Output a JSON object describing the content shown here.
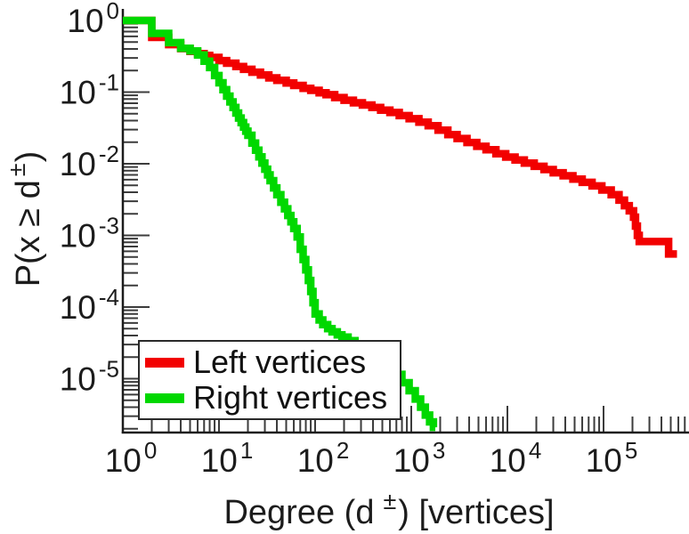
{
  "figure_title": "",
  "chart_data": {
    "type": "line",
    "subtype": "ccdf-step-loglog",
    "x_scale": "log",
    "y_scale": "log",
    "xlim": [
      1,
      800000
    ],
    "ylim": [
      1.8e-06,
      1
    ],
    "grid": false,
    "background_color": "#ffffff",
    "axis_color": "#1c1c1c",
    "tick_color": "#3c3c3c",
    "xlabel": {
      "pre": "Degree (d",
      "sup": "±",
      "post": ") [vertices]",
      "text": "Degree (d±) [vertices]"
    },
    "ylabel": {
      "pre": "P(x ≥ d",
      "sup": "±",
      "post": ")",
      "text": "P(x ≥ d±)"
    },
    "x_axis": {
      "ticks": [
        {
          "base": "10",
          "exp": "0"
        },
        {
          "base": "10",
          "exp": "1"
        },
        {
          "base": "10",
          "exp": "2"
        },
        {
          "base": "10",
          "exp": "3"
        },
        {
          "base": "10",
          "exp": "4"
        },
        {
          "base": "10",
          "exp": "5"
        }
      ]
    },
    "y_axis": {
      "ticks": [
        {
          "base": "10",
          "exp": "0"
        },
        {
          "base": "10",
          "exp": "-1"
        },
        {
          "base": "10",
          "exp": "-2"
        },
        {
          "base": "10",
          "exp": "-3"
        },
        {
          "base": "10",
          "exp": "-4"
        },
        {
          "base": "10",
          "exp": "-5"
        }
      ]
    },
    "legend_position": "lower-left",
    "series": [
      {
        "name": "Left vertices",
        "color": "#f20000",
        "x_end": 580000,
        "points": [
          [
            1,
            1.0
          ],
          [
            2,
            0.58
          ],
          [
            3,
            0.46
          ],
          [
            4,
            0.405
          ],
          [
            5,
            0.37
          ],
          [
            6,
            0.345
          ],
          [
            7,
            0.325
          ],
          [
            8,
            0.305
          ],
          [
            10,
            0.275
          ],
          [
            12,
            0.253
          ],
          [
            15,
            0.228
          ],
          [
            18,
            0.208
          ],
          [
            22,
            0.19
          ],
          [
            27,
            0.173
          ],
          [
            33,
            0.158
          ],
          [
            40,
            0.146
          ],
          [
            50,
            0.134
          ],
          [
            60,
            0.124
          ],
          [
            75,
            0.113
          ],
          [
            90,
            0.106
          ],
          [
            110,
            0.098
          ],
          [
            130,
            0.092
          ],
          [
            160,
            0.084
          ],
          [
            200,
            0.077
          ],
          [
            250,
            0.071
          ],
          [
            310,
            0.066
          ],
          [
            390,
            0.061
          ],
          [
            480,
            0.056
          ],
          [
            600,
            0.052
          ],
          [
            750,
            0.047
          ],
          [
            950,
            0.0425
          ],
          [
            1200,
            0.038
          ],
          [
            1500,
            0.034
          ],
          [
            1900,
            0.0295
          ],
          [
            2400,
            0.0255
          ],
          [
            3000,
            0.0225
          ],
          [
            3800,
            0.0198
          ],
          [
            4800,
            0.0175
          ],
          [
            6000,
            0.0157
          ],
          [
            7600,
            0.0138
          ],
          [
            9600,
            0.0124
          ],
          [
            12000,
            0.0113
          ],
          [
            15000,
            0.0102
          ],
          [
            19000,
            0.0092
          ],
          [
            24000,
            0.0083
          ],
          [
            30000,
            0.0075
          ],
          [
            38000,
            0.0068
          ],
          [
            48000,
            0.0061
          ],
          [
            60000,
            0.0055
          ],
          [
            76000,
            0.0049
          ],
          [
            96000,
            0.0043
          ],
          [
            120000,
            0.0037
          ],
          [
            145000,
            0.0031
          ],
          [
            165000,
            0.0026
          ],
          [
            185000,
            0.0022
          ],
          [
            205000,
            0.0018
          ],
          [
            215000,
            0.00135
          ],
          [
            225000,
            0.001
          ],
          [
            235000,
            0.00082
          ],
          [
            475000,
            0.00055
          ]
        ]
      },
      {
        "name": "Right vertices",
        "color": "#00d800",
        "x_end": 1780,
        "points": [
          [
            1,
            1.0
          ],
          [
            2,
            0.66
          ],
          [
            3,
            0.49
          ],
          [
            4,
            0.41
          ],
          [
            5,
            0.375
          ],
          [
            6,
            0.33
          ],
          [
            7,
            0.27
          ],
          [
            8,
            0.22
          ],
          [
            9,
            0.17
          ],
          [
            10,
            0.135
          ],
          [
            11,
            0.108
          ],
          [
            12,
            0.088
          ],
          [
            13,
            0.073
          ],
          [
            14,
            0.061
          ],
          [
            15,
            0.051
          ],
          [
            16,
            0.0435
          ],
          [
            17,
            0.0375
          ],
          [
            18,
            0.0325
          ],
          [
            19,
            0.0285
          ],
          [
            20,
            0.025
          ],
          [
            22,
            0.0195
          ],
          [
            24,
            0.0155
          ],
          [
            26,
            0.0125
          ],
          [
            28,
            0.0102
          ],
          [
            30,
            0.0084
          ],
          [
            32,
            0.007
          ],
          [
            34,
            0.0058
          ],
          [
            37,
            0.0046
          ],
          [
            40,
            0.0037
          ],
          [
            44,
            0.0029
          ],
          [
            48,
            0.00235
          ],
          [
            52,
            0.0019
          ],
          [
            56,
            0.00155
          ],
          [
            60,
            0.00125
          ],
          [
            65,
            0.00095
          ],
          [
            70,
            0.00064
          ],
          [
            75,
            0.00046
          ],
          [
            80,
            0.00033
          ],
          [
            85,
            0.000235
          ],
          [
            90,
            0.000165
          ],
          [
            95,
            0.000115
          ],
          [
            100,
            8e-05
          ],
          [
            110,
            6.6e-05
          ],
          [
            120,
            5.7e-05
          ],
          [
            135,
            5e-05
          ],
          [
            150,
            4.5e-05
          ],
          [
            170,
            4.1e-05
          ],
          [
            190,
            3.8e-05
          ],
          [
            220,
            3.4e-05
          ],
          [
            260,
            3e-05
          ],
          [
            310,
            2.6e-05
          ],
          [
            380,
            2.2e-05
          ],
          [
            460,
            1.8e-05
          ],
          [
            560,
            1.45e-05
          ],
          [
            680,
            1.15e-05
          ],
          [
            800,
            8.8e-06
          ],
          [
            950,
            6.8e-06
          ],
          [
            1100,
            5.2e-06
          ],
          [
            1250,
            4e-06
          ],
          [
            1400,
            3.1e-06
          ],
          [
            1550,
            2.5e-06
          ],
          [
            1700,
            2.1e-06
          ]
        ]
      }
    ]
  }
}
